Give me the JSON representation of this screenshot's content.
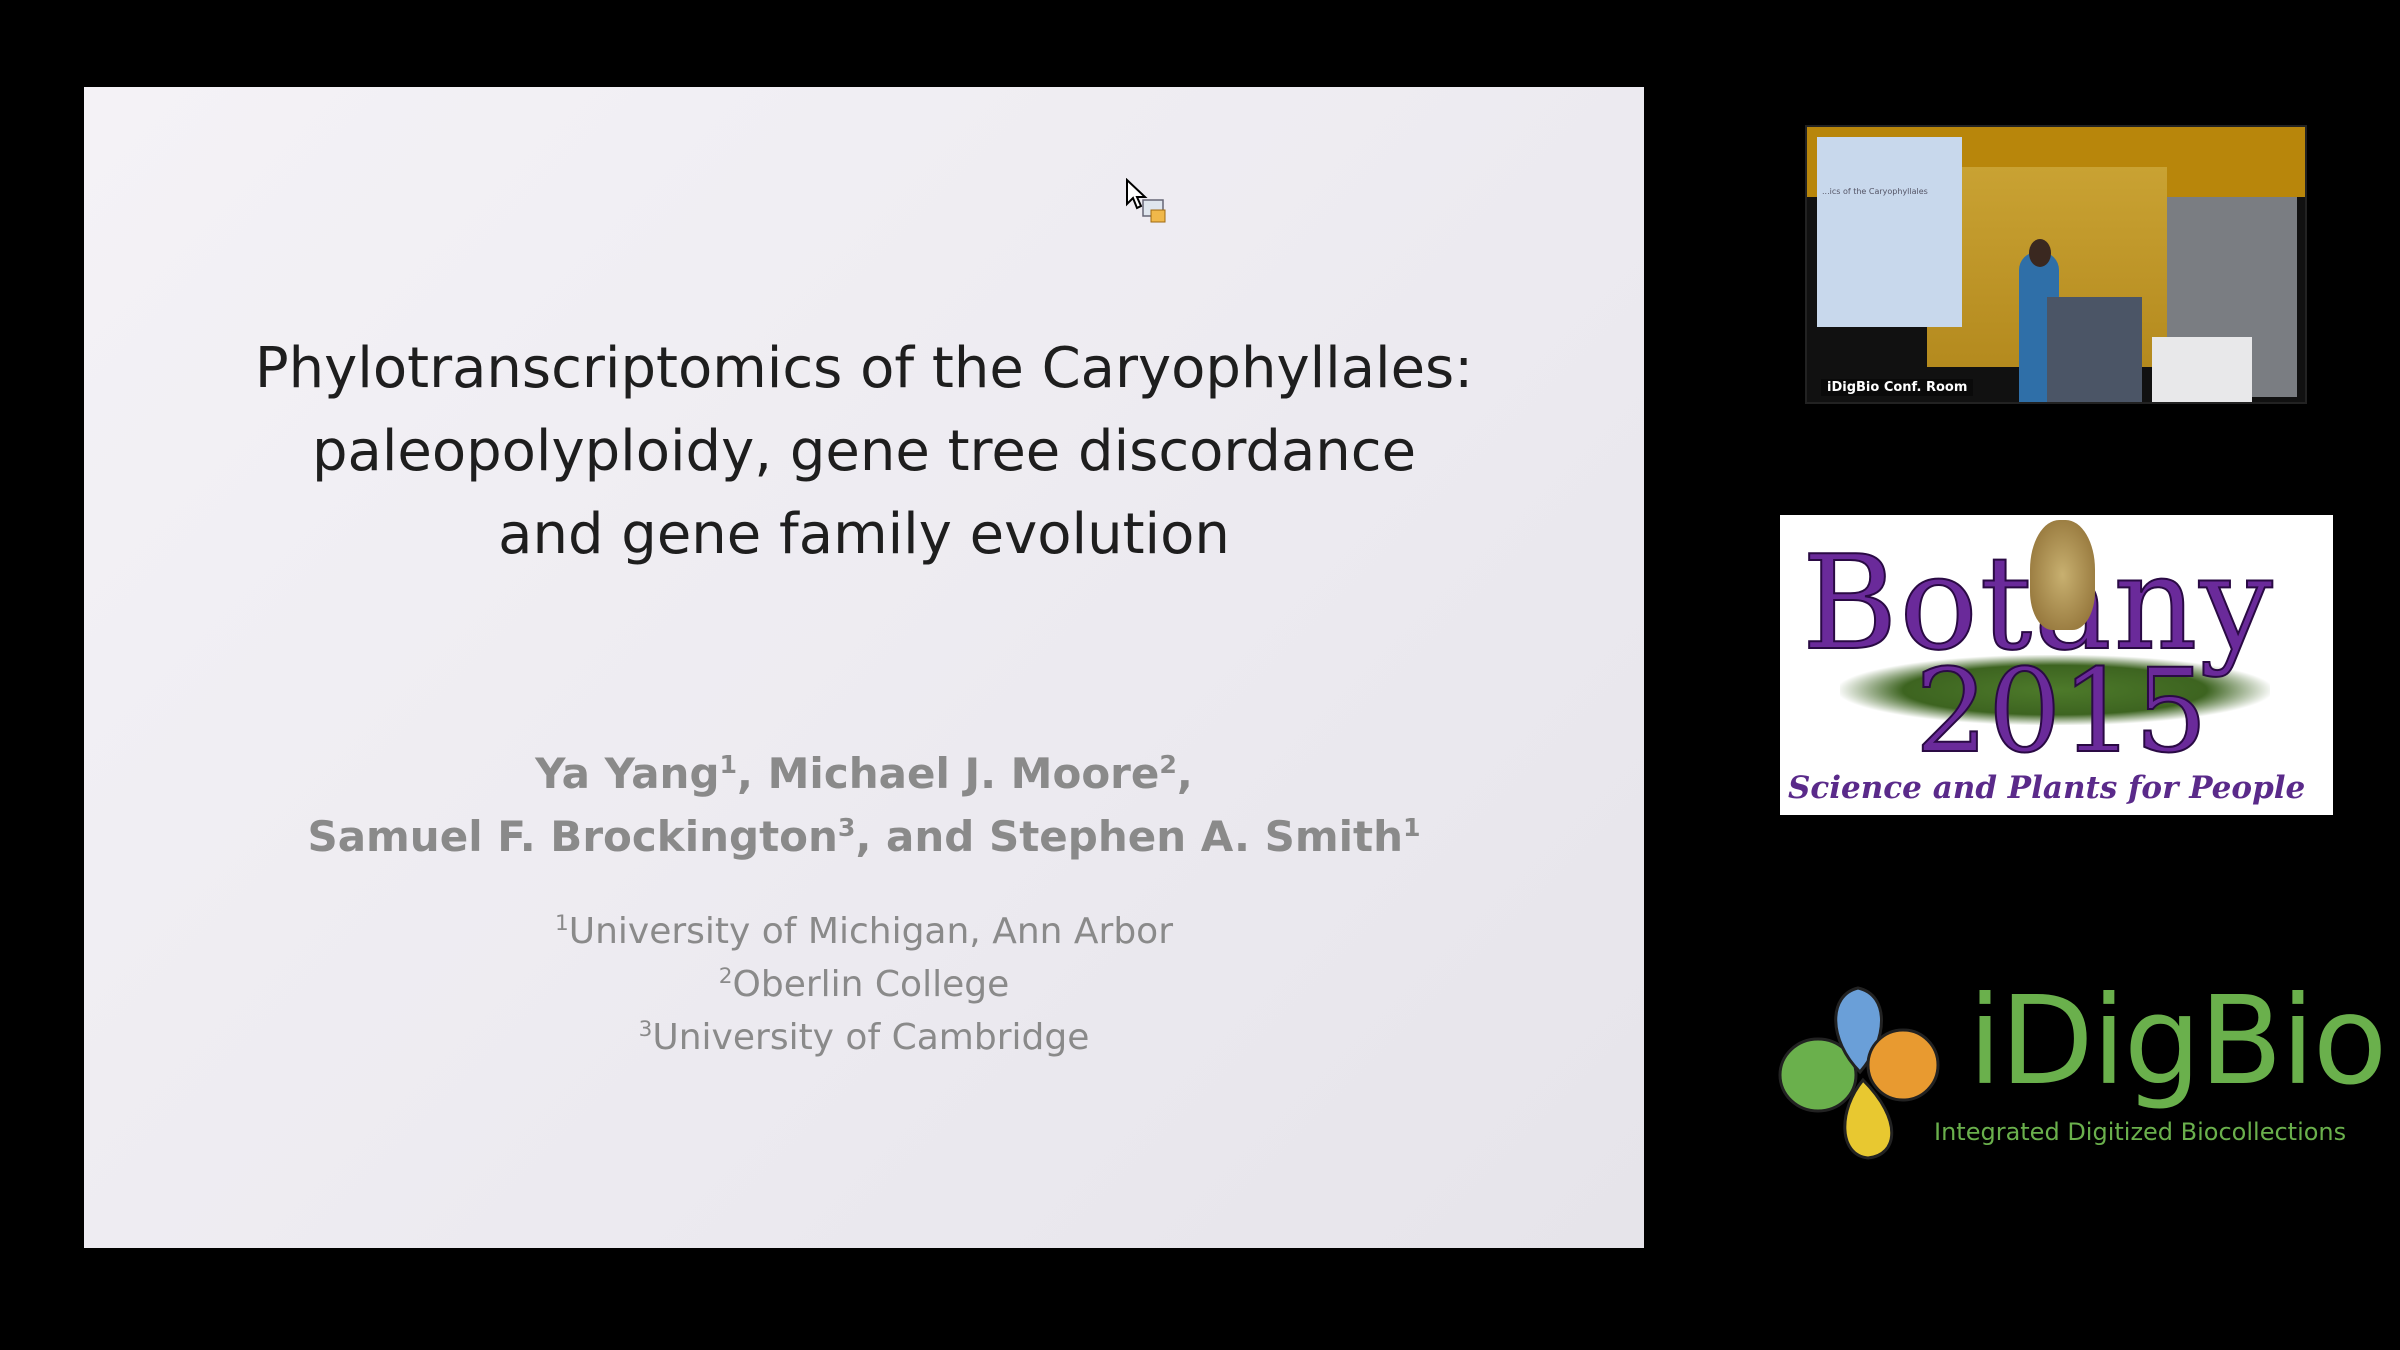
{
  "slide": {
    "title_lines": [
      "Phylotranscriptomics of the Caryophyllales:",
      "paleopolyploidy, gene tree discordance",
      "and gene family evolution"
    ],
    "authors": [
      {
        "name": "Ya Yang",
        "sup": "1",
        "sep": ", "
      },
      {
        "name": "Michael J. Moore",
        "sup": "2",
        "sep": ","
      },
      {
        "name": "Samuel F. Brockington",
        "sup": "3",
        "sep": ", and "
      },
      {
        "name": "Stephen A. Smith",
        "sup": "1",
        "sep": ""
      }
    ],
    "affiliations": [
      {
        "sup": "1",
        "name": "University of Michigan, Ann Arbor"
      },
      {
        "sup": "2",
        "name": "Oberlin College"
      },
      {
        "sup": "3",
        "name": "University of Cambridge"
      }
    ]
  },
  "webcam": {
    "label": "iDigBio Conf. Room",
    "screen_text": "...ics of the Caryophyllales"
  },
  "botany_logo": {
    "line1": "Botany",
    "line2": "2015",
    "tagline": "Science and Plants for People"
  },
  "idigbio_logo": {
    "name": "iDigBio",
    "subtitle": "Integrated Digitized Biocollections",
    "color": "#6ab04c"
  }
}
